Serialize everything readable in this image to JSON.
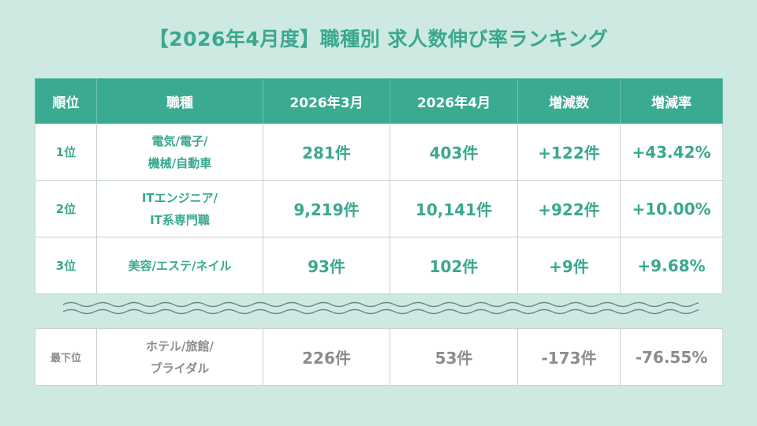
{
  "title": "【2026年4月度】職種別 求人数伸び率ランキング",
  "headers": [
    "順位",
    "職種",
    "2026年3月",
    "2026年4月",
    "増減数",
    "増減率"
  ],
  "rows": [
    {
      "rank": "1位",
      "job_line1": "電気/電子/",
      "job_line2": "機械/自動車",
      "mar": "281件",
      "apr": "403件",
      "diff": "+122件",
      "rate": "+43.42%"
    },
    {
      "rank": "2位",
      "job_line1": "ITエンジニア/",
      "job_line2": "IT系専門職",
      "mar": "9,219件",
      "apr": "10,141件",
      "diff": "+922件",
      "rate": "+10.00%"
    },
    {
      "rank": "3位",
      "job_line1": "美容/エステ/ネイル",
      "job_line2": "",
      "mar": "93件",
      "apr": "102件",
      "diff": "+9件",
      "rate": "+9.68%"
    }
  ],
  "bottom": {
    "rank": "最下位",
    "job_line1": "ホテル/旅館/",
    "job_line2": "ブライダル",
    "mar": "226件",
    "apr": "53件",
    "diff": "-173件",
    "rate": "-76.55%"
  },
  "colors": {
    "accent": "#3aa88f",
    "header_bg": "#3aaa92",
    "background": "#cde9e2",
    "muted": "#8c8c8c"
  }
}
